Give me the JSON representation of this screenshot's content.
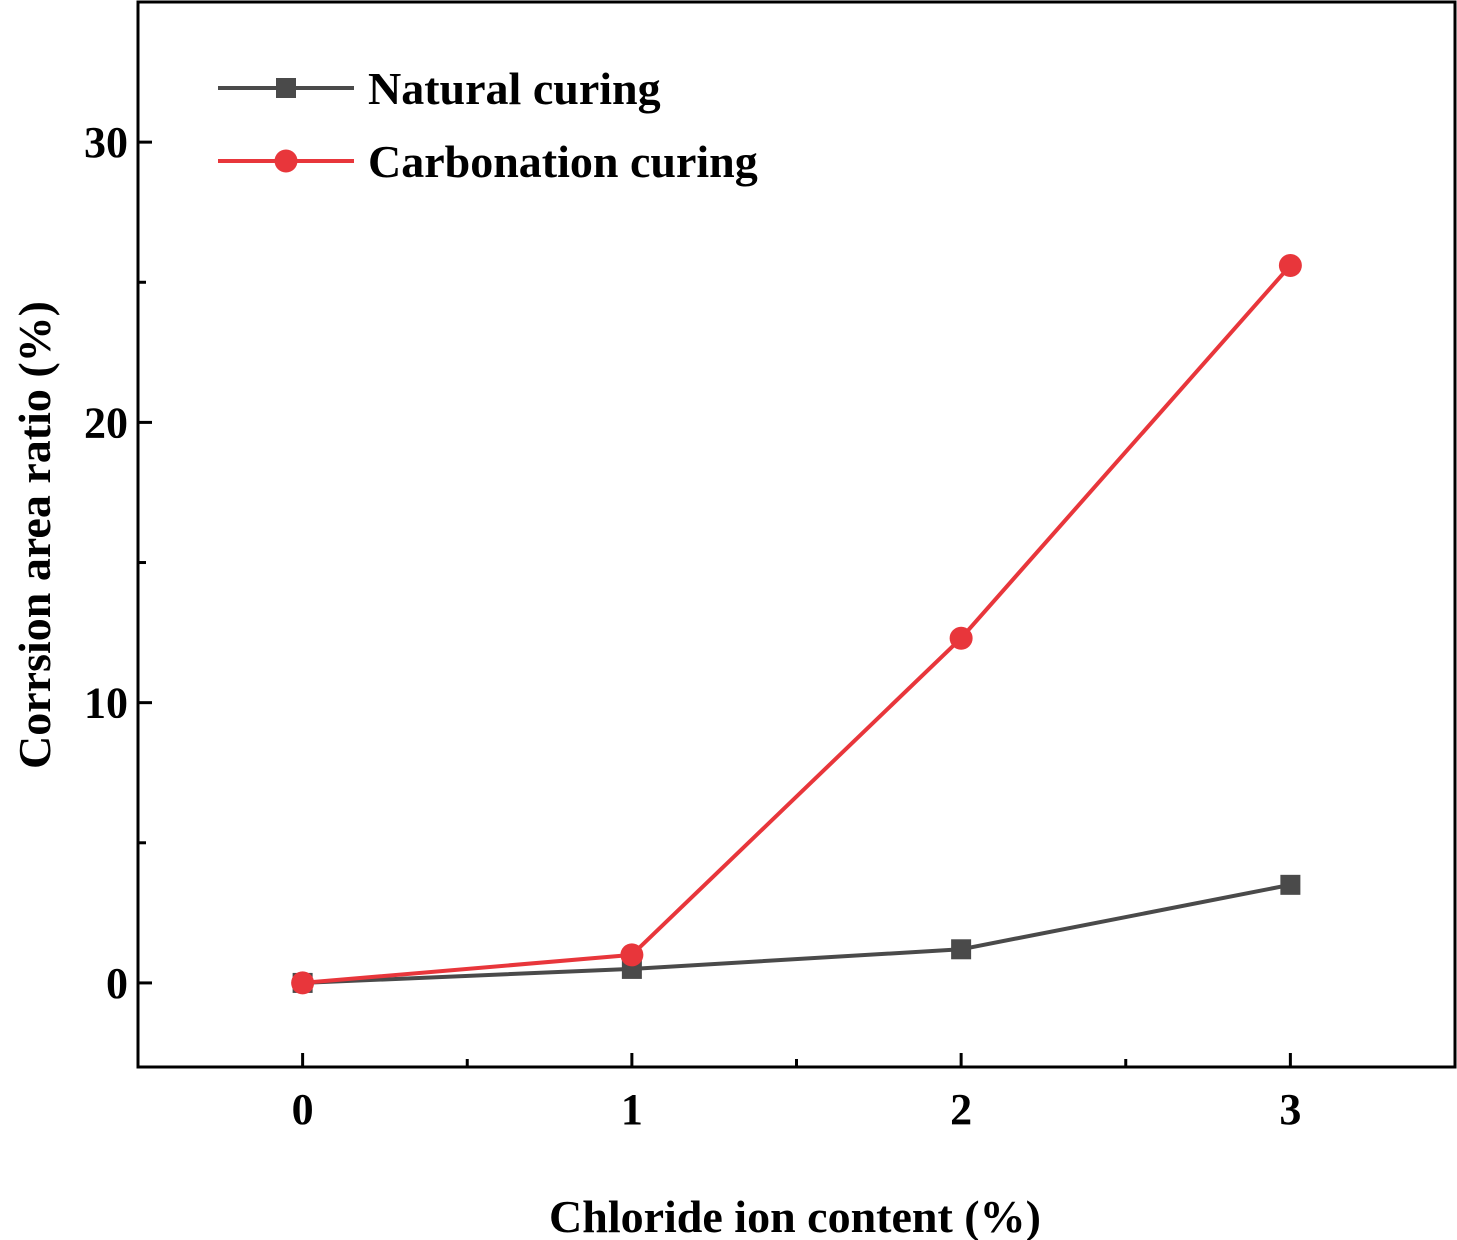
{
  "chart_data": {
    "type": "line",
    "xlabel": "Chloride ion content (%)",
    "ylabel": "Corrsion area ratio (%)",
    "x": [
      0,
      1,
      2,
      3
    ],
    "xlim": [
      -0.5,
      3.5
    ],
    "ylim": [
      -3,
      35
    ],
    "xticks": [
      0,
      1,
      2,
      3
    ],
    "xtick_labels": [
      "0",
      "1",
      "2",
      "3"
    ],
    "yticks": [
      0,
      10,
      20,
      30
    ],
    "ytick_labels": [
      "0",
      "10",
      "20",
      "30"
    ],
    "grid": false,
    "legend_position": "top-left",
    "series": [
      {
        "name": "Natural curing",
        "values": [
          0,
          0.5,
          1.2,
          3.5
        ],
        "color": "#4a4a4a",
        "marker": "square"
      },
      {
        "name": "Carbonation curing",
        "values": [
          0,
          1.0,
          12.3,
          25.6
        ],
        "color": "#e8363b",
        "marker": "circle"
      }
    ]
  }
}
